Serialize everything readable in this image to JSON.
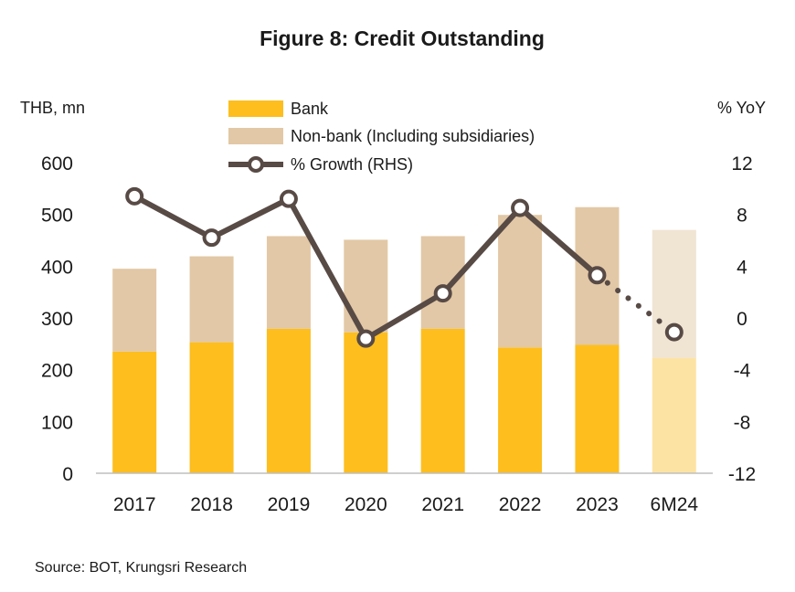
{
  "chart_data": {
    "type": "bar",
    "title": "Figure  8: Credit Outstanding",
    "ylabel_left": "THB, mn",
    "ylabel_right": "% YoY",
    "categories": [
      "2017",
      "2018",
      "2019",
      "2020",
      "2021",
      "2022",
      "2023",
      "6M24"
    ],
    "ylim_left": [
      0,
      600
    ],
    "yticks_left": [
      0,
      100,
      200,
      300,
      400,
      500,
      600
    ],
    "ylim_right": [
      -12,
      12
    ],
    "yticks_right": [
      -12,
      -8,
      -4,
      0,
      4,
      8,
      12
    ],
    "stacked": true,
    "grid": false,
    "legend_position": "top-center",
    "series": [
      {
        "name": "Bank",
        "kind": "bar",
        "axis": "left",
        "color": "#FDBE1E",
        "last_color": "#FDE3A3",
        "values": [
          235,
          253,
          279,
          272,
          279,
          243,
          248,
          223
        ]
      },
      {
        "name": "Non-bank (Including subsidiaries)",
        "kind": "bar",
        "axis": "left",
        "color": "#E2C8A6",
        "last_color": "#F0E4D3",
        "values": [
          160,
          166,
          179,
          179,
          179,
          256,
          266,
          247
        ]
      },
      {
        "name": "% Growth (RHS)",
        "kind": "line",
        "axis": "right",
        "color": "#584A45",
        "dashed_last_segment": true,
        "values": [
          9.4,
          6.2,
          9.2,
          -1.6,
          1.9,
          8.5,
          3.3,
          -1.1
        ]
      }
    ]
  },
  "source": "Source: BOT, Krungsri Research"
}
